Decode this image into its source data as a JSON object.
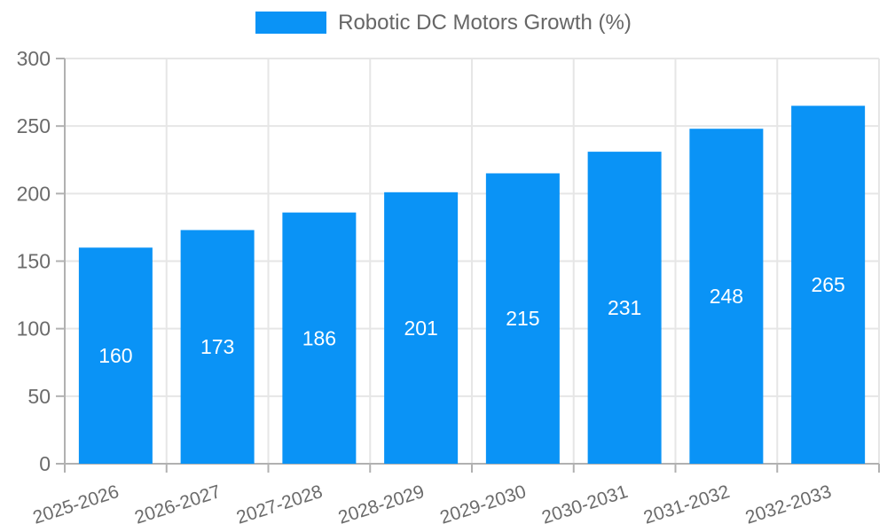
{
  "legend": {
    "label": "Robotic DC Motors Growth (%)"
  },
  "chart_data": {
    "type": "bar",
    "title": "",
    "series_name": "Robotic DC Motors Growth (%)",
    "categories": [
      "2025-2026",
      "2026-2027",
      "2027-2028",
      "2028-2029",
      "2029-2030",
      "2030-2031",
      "2031-2032",
      "2032-2033"
    ],
    "values": [
      160,
      173,
      186,
      201,
      215,
      231,
      248,
      265
    ],
    "bar_value_labels": [
      160,
      173,
      186,
      201,
      215,
      231,
      248,
      265
    ],
    "xlabel": "",
    "ylabel": "",
    "ylim": [
      0,
      300
    ],
    "yticks": [
      0,
      50,
      100,
      150,
      200,
      250,
      300
    ],
    "grid": true,
    "legend_position": "top",
    "x_tick_rotation_deg": -18,
    "value_label_position": "inside-center"
  },
  "colors": {
    "bar": "#0a93f6",
    "grid": "#e6e6e6",
    "axis": "#b1b1b1",
    "tick_text": "#6b6b6b",
    "legend_text": "#666666",
    "bar_label": "#ffffff",
    "background": "#ffffff"
  }
}
